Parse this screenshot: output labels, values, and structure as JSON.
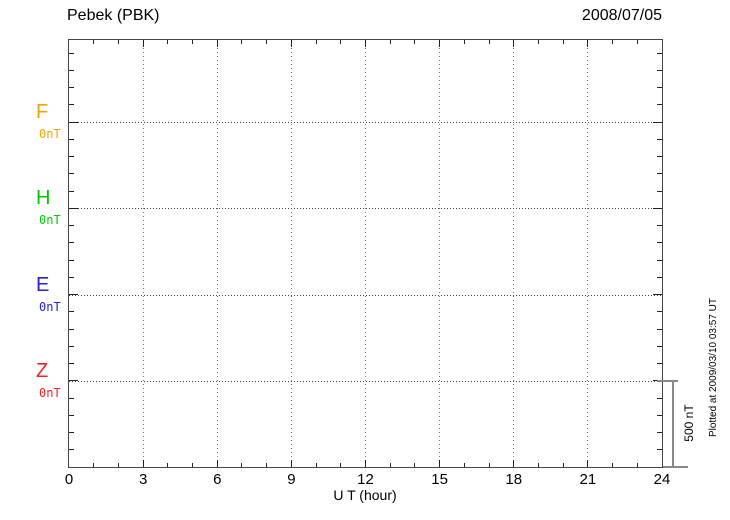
{
  "header": {
    "title": "Pebek (PBK)",
    "date": "2008/07/05"
  },
  "axes": {
    "xlabel": "U T (hour)",
    "x_tick_labels": [
      "0",
      "3",
      "6",
      "9",
      "12",
      "15",
      "18",
      "21",
      "24"
    ]
  },
  "channels": [
    {
      "label": "F",
      "offset_label": "0nT",
      "color": "#f2a500"
    },
    {
      "label": "H",
      "offset_label": "0nT",
      "color": "#00c800"
    },
    {
      "label": "E",
      "offset_label": "0nT",
      "color": "#2323cd"
    },
    {
      "label": "Z",
      "offset_label": "0nT",
      "color": "#ee2222"
    }
  ],
  "scale_bar": {
    "label": "500 nT"
  },
  "footer_note": "Plotted at 2009/03/10 03:57 UT",
  "chart_data": {
    "type": "line",
    "title": "Pebek (PBK)",
    "subtitle": "2008/07/05",
    "xlabel": "U T (hour)",
    "xlim": [
      0,
      24
    ],
    "x_ticks": [
      0,
      3,
      6,
      9,
      12,
      15,
      18,
      21,
      24
    ],
    "x_minor_tick_hours": 1,
    "y_scale_bar_nT": 500,
    "y_minor_tick_nT": 100,
    "grid": "dotted; vertical every 3 h, horizontal at each channel 0 nT baseline",
    "series": [
      {
        "name": "F",
        "baseline_nT": 0,
        "color": "#f2a500",
        "points": []
      },
      {
        "name": "H",
        "baseline_nT": 0,
        "color": "#00c800",
        "points": []
      },
      {
        "name": "E",
        "baseline_nT": 0,
        "color": "#2323cd",
        "points": []
      },
      {
        "name": "Z",
        "baseline_nT": 0,
        "color": "#ee2222",
        "points": []
      }
    ]
  }
}
